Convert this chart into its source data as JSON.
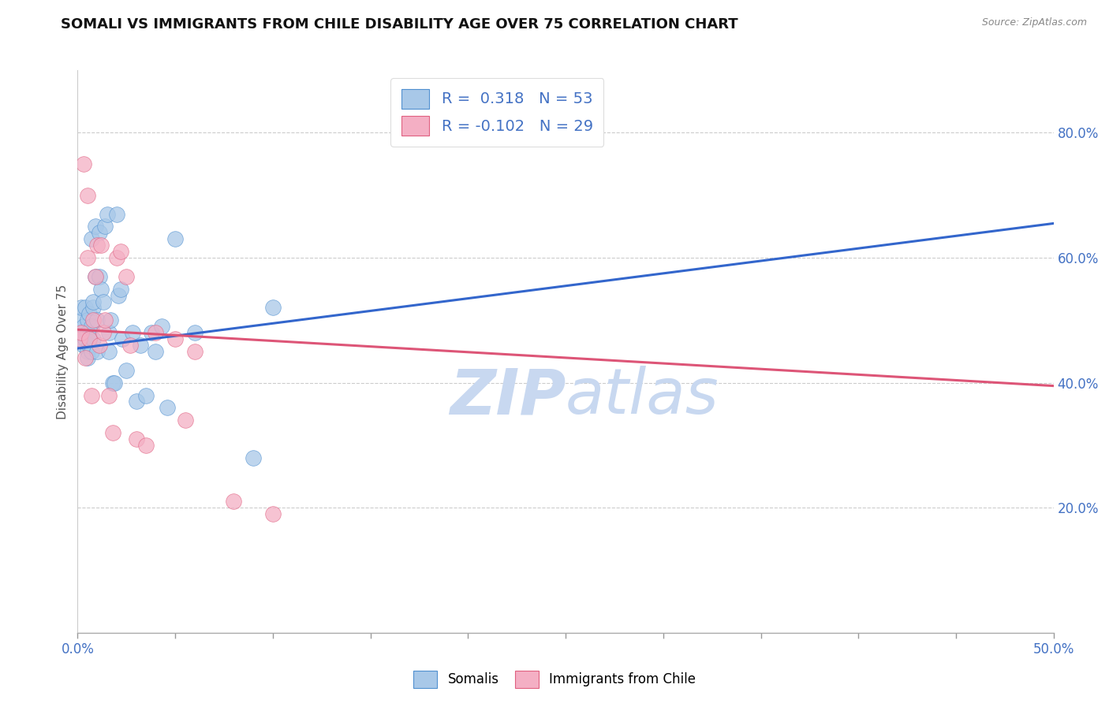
{
  "title": "SOMALI VS IMMIGRANTS FROM CHILE DISABILITY AGE OVER 75 CORRELATION CHART",
  "source": "Source: ZipAtlas.com",
  "ylabel": "Disability Age Over 75",
  "xlim": [
    0.0,
    0.5
  ],
  "ylim": [
    0.0,
    0.9
  ],
  "yticks_right": [
    0.2,
    0.4,
    0.6,
    0.8
  ],
  "somali_R": 0.318,
  "somali_N": 53,
  "chile_R": -0.102,
  "chile_N": 29,
  "somali_color": "#a8c8e8",
  "chile_color": "#f4afc4",
  "somali_edge_color": "#5090d0",
  "chile_edge_color": "#e06080",
  "somali_line_color": "#3366cc",
  "chile_line_color": "#dd5577",
  "background_color": "#ffffff",
  "watermark_color": "#c8d8f0",
  "somali_x": [
    0.001,
    0.002,
    0.002,
    0.003,
    0.003,
    0.003,
    0.004,
    0.004,
    0.005,
    0.005,
    0.005,
    0.005,
    0.006,
    0.006,
    0.006,
    0.007,
    0.007,
    0.007,
    0.008,
    0.008,
    0.008,
    0.009,
    0.009,
    0.01,
    0.01,
    0.011,
    0.011,
    0.012,
    0.013,
    0.014,
    0.015,
    0.016,
    0.016,
    0.017,
    0.018,
    0.019,
    0.02,
    0.021,
    0.022,
    0.023,
    0.025,
    0.028,
    0.03,
    0.032,
    0.035,
    0.038,
    0.04,
    0.043,
    0.046,
    0.05,
    0.06,
    0.09,
    0.1
  ],
  "somali_y": [
    0.48,
    0.5,
    0.52,
    0.49,
    0.47,
    0.46,
    0.47,
    0.52,
    0.5,
    0.48,
    0.45,
    0.44,
    0.46,
    0.47,
    0.51,
    0.45,
    0.49,
    0.63,
    0.52,
    0.47,
    0.53,
    0.57,
    0.65,
    0.5,
    0.45,
    0.57,
    0.64,
    0.55,
    0.53,
    0.65,
    0.67,
    0.48,
    0.45,
    0.5,
    0.4,
    0.4,
    0.67,
    0.54,
    0.55,
    0.47,
    0.42,
    0.48,
    0.37,
    0.46,
    0.38,
    0.48,
    0.45,
    0.49,
    0.36,
    0.63,
    0.48,
    0.28,
    0.52
  ],
  "chile_x": [
    0.001,
    0.002,
    0.003,
    0.004,
    0.005,
    0.005,
    0.006,
    0.007,
    0.008,
    0.009,
    0.01,
    0.011,
    0.012,
    0.013,
    0.014,
    0.016,
    0.018,
    0.02,
    0.022,
    0.025,
    0.027,
    0.03,
    0.035,
    0.04,
    0.05,
    0.055,
    0.06,
    0.08,
    0.1
  ],
  "chile_y": [
    0.47,
    0.48,
    0.75,
    0.44,
    0.7,
    0.6,
    0.47,
    0.38,
    0.5,
    0.57,
    0.62,
    0.46,
    0.62,
    0.48,
    0.5,
    0.38,
    0.32,
    0.6,
    0.61,
    0.57,
    0.46,
    0.31,
    0.3,
    0.48,
    0.47,
    0.34,
    0.45,
    0.21,
    0.19
  ],
  "somali_line_x": [
    0.0,
    0.5
  ],
  "somali_line_y": [
    0.455,
    0.655
  ],
  "chile_line_x": [
    0.0,
    0.5
  ],
  "chile_line_y": [
    0.485,
    0.395
  ],
  "legend_labels": [
    "Somalis",
    "Immigrants from Chile"
  ],
  "title_fontsize": 13,
  "axis_label_fontsize": 11,
  "tick_fontsize": 12
}
